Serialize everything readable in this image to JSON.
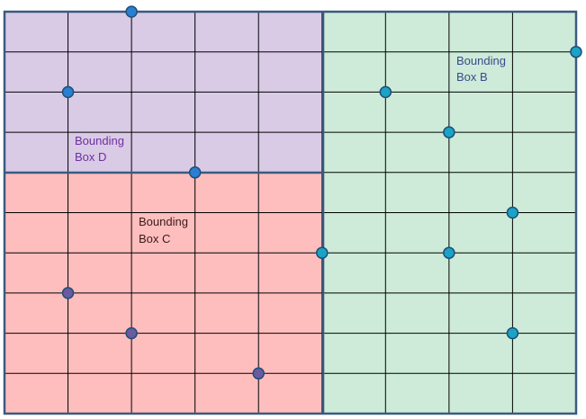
{
  "colors": {
    "box_d_fill": "#d9cae6",
    "box_c_fill": "#ffbebe",
    "box_b_fill": "#cdebd8",
    "grid_line": "#000000",
    "box_border": "#3a5a80",
    "box_d_text": "#7030a0",
    "box_c_text": "#3a1a1a",
    "box_b_text": "#3a4a8a",
    "point_blue": "#2a7fd0",
    "point_teal": "#1aa3c4",
    "point_purple": "#6a5aa0",
    "point_stroke": "#1f4e79"
  },
  "grid": {
    "cols": 9,
    "rows": 10
  },
  "boxes": [
    {
      "id": "box-d",
      "label_line1": "Bounding",
      "label_line2": "Box D"
    },
    {
      "id": "box-c",
      "label_line1": "Bounding",
      "label_line2": "Box C"
    },
    {
      "id": "box-b",
      "label_line1": "Bounding",
      "label_line2": "Box B"
    }
  ],
  "points": [
    {
      "col": 2,
      "row": 0,
      "group": "D"
    },
    {
      "col": 1,
      "row": 2,
      "group": "D"
    },
    {
      "col": 3,
      "row": 4,
      "group": "D"
    },
    {
      "col": 6,
      "row": 2,
      "group": "B"
    },
    {
      "col": 9,
      "row": 1,
      "group": "B"
    },
    {
      "col": 7,
      "row": 3,
      "group": "B"
    },
    {
      "col": 8,
      "row": 5,
      "group": "B"
    },
    {
      "col": 7,
      "row": 6,
      "group": "B"
    },
    {
      "col": 5,
      "row": 6,
      "group": "B"
    },
    {
      "col": 8,
      "row": 8,
      "group": "B"
    },
    {
      "col": 1,
      "row": 7,
      "group": "C"
    },
    {
      "col": 2,
      "row": 8,
      "group": "C"
    },
    {
      "col": 4,
      "row": 9,
      "group": "C"
    }
  ]
}
